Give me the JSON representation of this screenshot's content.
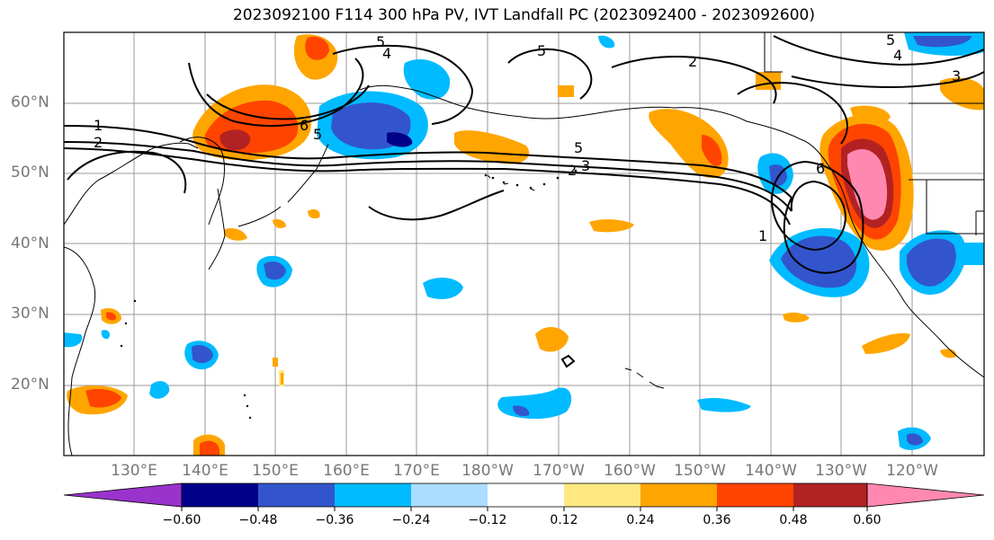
{
  "title": "2023092100 F114 300 hPa PV, IVT Landfall PC (2023092400 - 2023092600)",
  "latitude_labels": [
    "60°N",
    "50°N",
    "40°N",
    "30°N",
    "20°N"
  ],
  "longitude_labels": [
    "130°E",
    "140°E",
    "150°E",
    "160°E",
    "170°E",
    "180°W",
    "170°W",
    "160°W",
    "150°W",
    "140°W",
    "130°W",
    "120°W"
  ],
  "contour_labels": [
    "1",
    "2",
    "3",
    "4",
    "5",
    "6"
  ],
  "colorbar": {
    "ticks": [
      "−0.60",
      "−0.48",
      "−0.36",
      "−0.24",
      "−0.12",
      "0.12",
      "0.24",
      "0.36",
      "0.48",
      "0.60"
    ],
    "colors": [
      "#9933cc",
      "#000088",
      "#3355cc",
      "#00bbff",
      "#aaddff",
      "#ffffff",
      "#ffe880",
      "#ffa500",
      "#ff4400",
      "#b22222",
      "#ff88b0"
    ]
  }
}
